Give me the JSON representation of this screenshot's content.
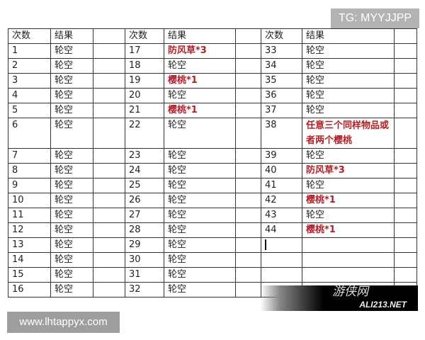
{
  "watermark_top": "TG: MYYJJPP",
  "watermark_bottom": "www.lhtappyx.com",
  "logo": {
    "cn": "游侠网",
    "en": "ALI213.NET"
  },
  "colors": {
    "highlight": "#b0202a",
    "border": "#333333"
  },
  "header": {
    "count": "次数",
    "result": "结果"
  },
  "rows": [
    [
      {
        "n": "1",
        "r": "轮空"
      },
      {
        "n": "17",
        "r": "防风草*3",
        "hl": true
      },
      {
        "n": "33",
        "r": "轮空"
      }
    ],
    [
      {
        "n": "2",
        "r": "轮空"
      },
      {
        "n": "18",
        "r": "轮空"
      },
      {
        "n": "34",
        "r": "轮空"
      }
    ],
    [
      {
        "n": "3",
        "r": "轮空"
      },
      {
        "n": "19",
        "r": "樱桃*1",
        "hl": true
      },
      {
        "n": "35",
        "r": "轮空"
      }
    ],
    [
      {
        "n": "4",
        "r": "轮空"
      },
      {
        "n": "20",
        "r": "轮空"
      },
      {
        "n": "36",
        "r": "轮空"
      }
    ],
    [
      {
        "n": "5",
        "r": "轮空"
      },
      {
        "n": "21",
        "r": "樱桃*1",
        "hl": true
      },
      {
        "n": "37",
        "r": "轮空"
      }
    ],
    [
      {
        "n": "6",
        "r": "轮空"
      },
      {
        "n": "22",
        "r": "轮空"
      },
      {
        "n": "38",
        "r": "任意三个同样物品或者两个樱桃",
        "hl": true
      }
    ],
    [
      {
        "n": "7",
        "r": "轮空"
      },
      {
        "n": "23",
        "r": "轮空"
      },
      {
        "n": "39",
        "r": "轮空"
      }
    ],
    [
      {
        "n": "8",
        "r": "轮空"
      },
      {
        "n": "24",
        "r": "轮空"
      },
      {
        "n": "40",
        "r": "防风草*3",
        "hl": true
      }
    ],
    [
      {
        "n": "9",
        "r": "轮空"
      },
      {
        "n": "25",
        "r": "轮空"
      },
      {
        "n": "41",
        "r": "轮空"
      }
    ],
    [
      {
        "n": "10",
        "r": "轮空"
      },
      {
        "n": "26",
        "r": "轮空"
      },
      {
        "n": "42",
        "r": "樱桃*1",
        "hl": true
      }
    ],
    [
      {
        "n": "11",
        "r": "轮空"
      },
      {
        "n": "27",
        "r": "轮空"
      },
      {
        "n": "43",
        "r": "轮空"
      }
    ],
    [
      {
        "n": "12",
        "r": "轮空"
      },
      {
        "n": "28",
        "r": "轮空"
      },
      {
        "n": "44",
        "r": "樱桃*1",
        "hl": true
      }
    ],
    [
      {
        "n": "13",
        "r": "轮空"
      },
      {
        "n": "29",
        "r": "轮空"
      },
      {
        "n": "",
        "r": "",
        "cursor": true
      }
    ],
    [
      {
        "n": "14",
        "r": "轮空"
      },
      {
        "n": "30",
        "r": "轮空"
      },
      {
        "n": "",
        "r": ""
      }
    ],
    [
      {
        "n": "15",
        "r": "轮空"
      },
      {
        "n": "31",
        "r": "轮空"
      },
      {
        "n": "",
        "r": ""
      }
    ],
    [
      {
        "n": "16",
        "r": "轮空"
      },
      {
        "n": "32",
        "r": "轮空"
      },
      {
        "n": "",
        "r": ""
      }
    ]
  ]
}
